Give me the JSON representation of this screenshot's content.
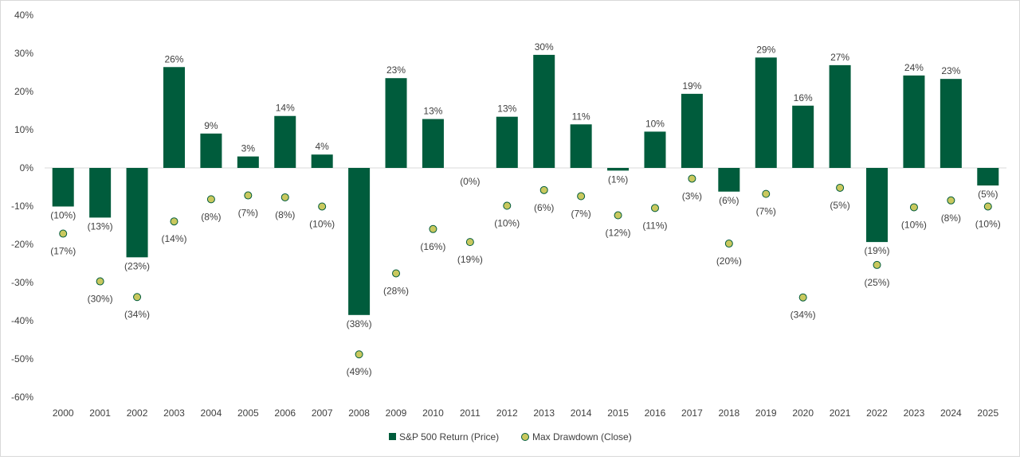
{
  "chart_data": {
    "type": "bar",
    "categories": [
      "2000",
      "2001",
      "2002",
      "2003",
      "2004",
      "2005",
      "2006",
      "2007",
      "2008",
      "2009",
      "2010",
      "2011",
      "2012",
      "2013",
      "2014",
      "2015",
      "2016",
      "2017",
      "2018",
      "2019",
      "2020",
      "2021",
      "2022",
      "2023",
      "2024",
      "2025"
    ],
    "series": [
      {
        "name": "S&P 500 Return (Price)",
        "type": "bar",
        "color": "#005c3c",
        "values": [
          -10.1,
          -13.0,
          -23.4,
          26.4,
          9.0,
          3.0,
          13.6,
          3.5,
          -38.5,
          23.5,
          12.8,
          0.0,
          13.4,
          29.6,
          11.4,
          -0.7,
          9.5,
          19.4,
          -6.2,
          28.9,
          16.3,
          26.9,
          -19.4,
          24.2,
          23.3,
          -4.6
        ],
        "labels": [
          "(10%)",
          "(13%)",
          "(23%)",
          "26%",
          "9%",
          "3%",
          "14%",
          "4%",
          "(38%)",
          "23%",
          "13%",
          "(0%)",
          "13%",
          "30%",
          "11%",
          "(1%)",
          "10%",
          "19%",
          "(6%)",
          "29%",
          "16%",
          "27%",
          "(19%)",
          "24%",
          "23%",
          "(5%)"
        ]
      },
      {
        "name": "Max Drawdown (Close)",
        "type": "scatter",
        "color": "#c9c85e",
        "values": [
          -17.2,
          -29.7,
          -33.8,
          -14.0,
          -8.2,
          -7.2,
          -7.7,
          -10.1,
          -48.8,
          -27.6,
          -16.0,
          -19.4,
          -9.9,
          -5.8,
          -7.4,
          -12.4,
          -10.5,
          -2.8,
          -19.8,
          -6.8,
          -33.9,
          -5.2,
          -25.4,
          -10.3,
          -8.5,
          -10.1
        ],
        "labels": [
          "(17%)",
          "(30%)",
          "(34%)",
          "(14%)",
          "(8%)",
          "(7%)",
          "(8%)",
          "(10%)",
          "(49%)",
          "(28%)",
          "(16%)",
          "(19%)",
          "(10%)",
          "(6%)",
          "(7%)",
          "(12%)",
          "(11%)",
          "(3%)",
          "(20%)",
          "(7%)",
          "(34%)",
          "(5%)",
          "(25%)",
          "(10%)",
          "(8%)",
          "(10%)"
        ]
      }
    ],
    "ylim": [
      -60,
      40
    ],
    "yticks": [
      -60,
      -50,
      -40,
      -30,
      -20,
      -10,
      0,
      10,
      20,
      30,
      40
    ],
    "ytick_labels": [
      "-60%",
      "-50%",
      "-40%",
      "-30%",
      "-20%",
      "-10%",
      "0%",
      "10%",
      "20%",
      "30%",
      "40%"
    ],
    "legend_position": "bottom-center",
    "grid": false
  }
}
